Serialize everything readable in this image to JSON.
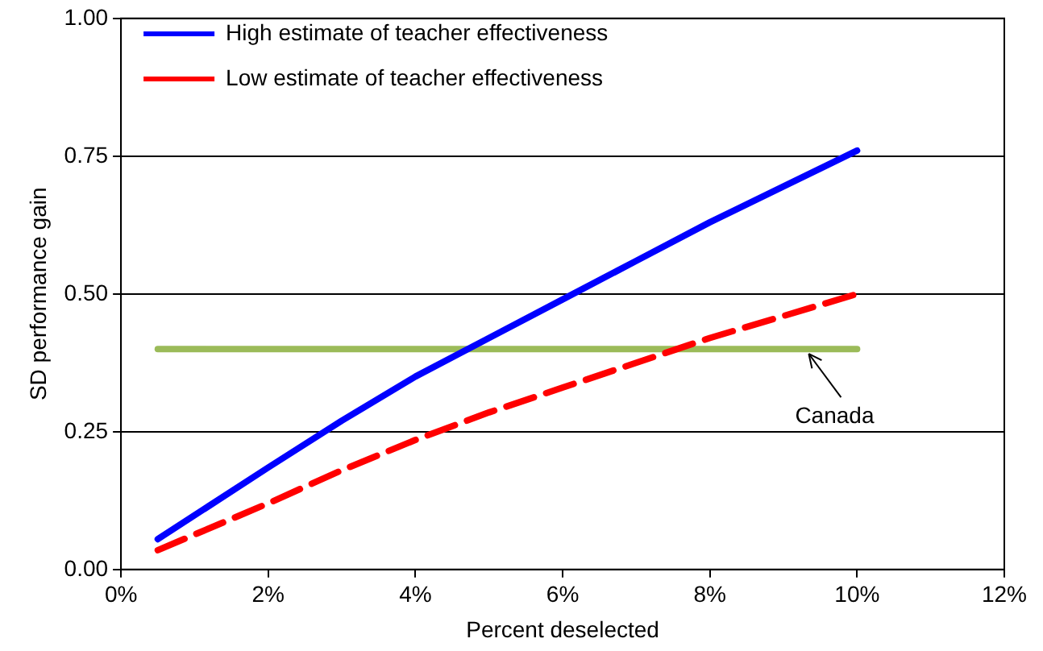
{
  "chart_data": {
    "type": "line",
    "xlabel": "Percent deselected",
    "ylabel": "SD performance gain",
    "xlim": [
      0,
      12
    ],
    "xticks": [
      {
        "value": 0,
        "label": "0%"
      },
      {
        "value": 2,
        "label": "2%"
      },
      {
        "value": 4,
        "label": "4%"
      },
      {
        "value": 6,
        "label": "6%"
      },
      {
        "value": 8,
        "label": "8%"
      },
      {
        "value": 10,
        "label": "10%"
      },
      {
        "value": 12,
        "label": "12%"
      }
    ],
    "ylim": [
      0,
      1
    ],
    "yticks": [
      {
        "value": 0,
        "label": "0.00"
      },
      {
        "value": 0.25,
        "label": "0.25"
      },
      {
        "value": 0.5,
        "label": "0.50"
      },
      {
        "value": 0.75,
        "label": "0.75"
      },
      {
        "value": 1,
        "label": "1.00"
      }
    ],
    "grid": "y",
    "legend": "top left",
    "marker": "none",
    "series": [
      {
        "name": "High estimate of teacher effectiveness",
        "color": "#0000ff",
        "line_style": "solid",
        "x": [
          0.5,
          2,
          3,
          4,
          5,
          6,
          7,
          8,
          9,
          10
        ],
        "values": [
          0.055,
          0.185,
          0.27,
          0.35,
          0.42,
          0.49,
          0.56,
          0.63,
          0.695,
          0.76
        ]
      },
      {
        "name": "Low estimate of teacher effectiveness",
        "color": "#ff0000",
        "line_style": "dashed",
        "x": [
          0.5,
          2,
          3,
          4,
          5,
          6,
          7,
          8,
          9,
          10
        ],
        "values": [
          0.035,
          0.12,
          0.18,
          0.235,
          0.285,
          0.33,
          0.375,
          0.42,
          0.46,
          0.5
        ]
      },
      {
        "color": "#9bbb59",
        "line_style": "solid",
        "x": [
          0.5,
          10
        ],
        "values": [
          0.4,
          0.4
        ]
      }
    ],
    "annotations": [
      {
        "text": "Canada",
        "x": 9.3,
        "y": 0.4
      }
    ]
  }
}
